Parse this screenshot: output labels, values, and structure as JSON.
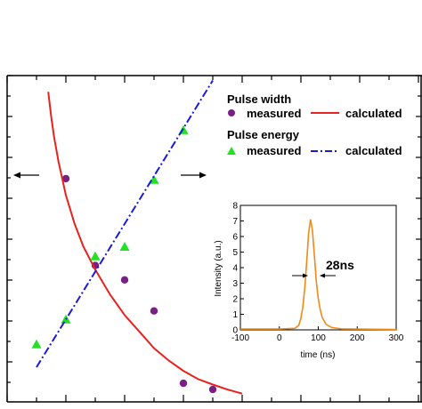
{
  "chart_data": [
    {
      "type": "scatter",
      "title": "",
      "xlabel": "",
      "ylabel": "",
      "left_axis": "pulse width",
      "right_axis": "pulse energy",
      "legend": {
        "placement": "top-right",
        "groups": [
          {
            "title": "Pulse width",
            "entries": [
              {
                "label": "measured",
                "marker": "circle",
                "color": "#7a1f86"
              },
              {
                "label": "calculated",
                "line": "solid",
                "color": "#e8211c"
              }
            ]
          },
          {
            "title": "Pulse energy",
            "entries": [
              {
                "label": "measured",
                "marker": "triangle",
                "color": "#22e022"
              },
              {
                "label": "calculated",
                "line": "dash-dot",
                "color": "#1a1adb"
              }
            ]
          }
        ]
      },
      "series": [
        {
          "name": "Pulse width measured",
          "axis": "left",
          "color": "#7a1f86",
          "points": [
            [
              2,
              5.4
            ],
            [
              3,
              3.3
            ],
            [
              4,
              2.95
            ],
            [
              5,
              2.2
            ],
            [
              6,
              0.45
            ],
            [
              7,
              0.3
            ]
          ]
        },
        {
          "name": "Pulse width calculated",
          "axis": "left",
          "color": "#e8211c",
          "points": [
            [
              1.4,
              7.5
            ],
            [
              1.5,
              6.9
            ],
            [
              1.6,
              6.4
            ],
            [
              1.75,
              5.8
            ],
            [
              2.0,
              5.0
            ],
            [
              2.3,
              4.3
            ],
            [
              2.6,
              3.75
            ],
            [
              3.0,
              3.2
            ],
            [
              3.5,
              2.6
            ],
            [
              4.0,
              2.1
            ],
            [
              4.5,
              1.7
            ],
            [
              5.0,
              1.3
            ],
            [
              5.5,
              1.0
            ],
            [
              6.0,
              0.75
            ],
            [
              6.5,
              0.55
            ],
            [
              7.0,
              0.42
            ],
            [
              7.5,
              0.3
            ],
            [
              8.0,
              0.2
            ]
          ]
        },
        {
          "name": "Pulse energy measured",
          "axis": "right",
          "color": "#22e022",
          "points": [
            [
              1,
              0.6
            ],
            [
              2,
              1.25
            ],
            [
              3,
              2.9
            ],
            [
              4,
              3.15
            ],
            [
              5,
              4.9
            ],
            [
              6,
              6.2
            ]
          ]
        },
        {
          "name": "Pulse energy calculated",
          "axis": "right",
          "color": "#1a1adb",
          "points": [
            [
              1,
              0
            ],
            [
              7,
              7.5
            ]
          ]
        }
      ],
      "annotations": [
        {
          "text": "arrow-left",
          "target": "pulse width"
        },
        {
          "text": "arrow-right",
          "target": "pulse energy"
        }
      ],
      "grid": false
    },
    {
      "type": "line",
      "title": "",
      "xlabel": "time (ns)",
      "ylabel": "Intensity (a.u.)",
      "xlim": [
        -100,
        300
      ],
      "ylim": [
        0,
        8
      ],
      "x_ticks": [
        -100,
        0,
        100,
        200,
        300
      ],
      "y_ticks": [
        0,
        1,
        2,
        3,
        4,
        5,
        6,
        7,
        8
      ],
      "annotation": "28ns",
      "series": [
        {
          "color": "#ef8a17",
          "points": [
            [
              -100,
              0.05
            ],
            [
              0,
              0.05
            ],
            [
              40,
              0.1
            ],
            [
              50,
              0.3
            ],
            [
              55,
              0.7
            ],
            [
              60,
              1.4
            ],
            [
              65,
              2.6
            ],
            [
              70,
              4.3
            ],
            [
              75,
              6.2
            ],
            [
              80,
              7.1
            ],
            [
              85,
              6.4
            ],
            [
              90,
              4.8
            ],
            [
              95,
              3.1
            ],
            [
              100,
              2.0
            ],
            [
              105,
              1.3
            ],
            [
              110,
              0.8
            ],
            [
              120,
              0.35
            ],
            [
              135,
              0.15
            ],
            [
              160,
              0.06
            ],
            [
              300,
              0.03
            ]
          ]
        }
      ],
      "grid": false
    }
  ]
}
